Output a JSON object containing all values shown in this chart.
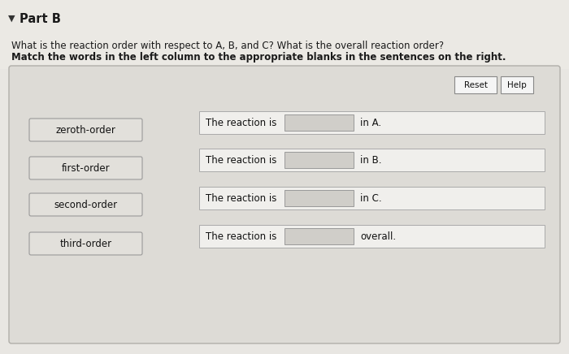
{
  "title": "Part B",
  "question1": "What is the reaction order with respect to A, B, and C? What is the overall reaction order?",
  "instruction": "Match the words in the left column to the appropriate blanks in the sentences on the right.",
  "left_labels": [
    "zeroth-order",
    "first-order",
    "second-order",
    "third-order"
  ],
  "right_sentences": [
    [
      "The reaction is",
      "in A."
    ],
    [
      "The reaction is",
      "in B."
    ],
    [
      "The reaction is",
      "in C."
    ],
    [
      "The reaction is",
      "overall."
    ]
  ],
  "page_bg": "#e8e6e2",
  "box_bg": "#dddbd6",
  "left_btn_fill": "#e2e0db",
  "left_btn_edge": "#999999",
  "right_row_fill": "#f0efec",
  "right_row_edge": "#aaaaaa",
  "blank_fill": "#d0cec9",
  "blank_edge": "#999999",
  "btn_fill": "#f5f5f5",
  "btn_edge": "#888888"
}
